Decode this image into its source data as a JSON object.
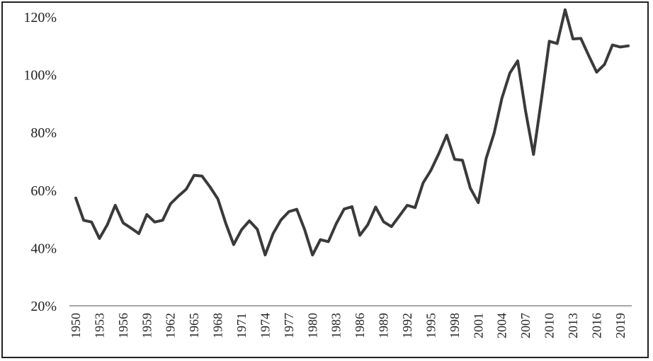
{
  "chart_data": {
    "type": "line",
    "title": "",
    "xlabel": "",
    "ylabel": "",
    "xlim": [
      1950,
      2020
    ],
    "ylim": [
      20,
      120
    ],
    "yticks": [
      "20%",
      "40%",
      "60%",
      "80%",
      "100%",
      "120%"
    ],
    "ytick_values": [
      20,
      40,
      60,
      80,
      100,
      120
    ],
    "xticks": [
      "1950",
      "1953",
      "1956",
      "1959",
      "1962",
      "1965",
      "1968",
      "1971",
      "1974",
      "1977",
      "1980",
      "1983",
      "1986",
      "1989",
      "1992",
      "1995",
      "1998",
      "2001",
      "2004",
      "2007",
      "2010",
      "2013",
      "2016",
      "2019"
    ],
    "xtick_values": [
      1950,
      1953,
      1956,
      1959,
      1962,
      1965,
      1968,
      1971,
      1974,
      1977,
      1980,
      1983,
      1986,
      1989,
      1992,
      1995,
      1998,
      2001,
      2004,
      2007,
      2010,
      2013,
      2016,
      2019
    ],
    "grid": false,
    "line_color": "#3a3a3a",
    "series": [
      {
        "x": [
          1950,
          1951,
          1952,
          1953,
          1954,
          1955,
          1956,
          1957,
          1958,
          1959,
          1960,
          1961,
          1962,
          1963,
          1964,
          1965,
          1966,
          1967,
          1968,
          1969,
          1970,
          1971,
          1972,
          1973,
          1974,
          1975,
          1976,
          1977,
          1978,
          1979,
          1980,
          1981,
          1982,
          1983,
          1984,
          1985,
          1986,
          1987,
          1988,
          1989,
          1990,
          1991,
          1992,
          1993,
          1994,
          1995,
          1996,
          1997,
          1998,
          1999,
          2000,
          2001,
          2002,
          2003,
          2004,
          2005,
          2006,
          2007,
          2008,
          2009,
          2010,
          2011,
          2012,
          2013,
          2014,
          2015,
          2016,
          2017,
          2018,
          2019,
          2020
        ],
        "values": [
          57.3,
          49.6,
          49.0,
          43.3,
          48.1,
          54.8,
          48.7,
          46.9,
          45.0,
          51.6,
          49.0,
          49.6,
          55.3,
          58.0,
          60.4,
          65.2,
          64.9,
          61.2,
          57.0,
          48.6,
          41.2,
          46.3,
          49.4,
          46.5,
          37.6,
          45.0,
          49.7,
          52.6,
          53.4,
          46.4,
          37.6,
          42.9,
          42.2,
          48.4,
          53.5,
          54.3,
          44.4,
          48.1,
          54.2,
          49.1,
          47.4,
          51.1,
          54.8,
          54.0,
          62.5,
          66.9,
          72.7,
          79.1,
          70.7,
          70.4,
          60.7,
          55.7,
          71.0,
          79.7,
          91.9,
          100.6,
          104.8,
          87.4,
          72.4,
          91.4,
          111.6,
          110.8,
          122.5,
          112.4,
          112.6,
          106.6,
          100.9,
          103.6,
          110.3,
          109.6,
          110.0
        ]
      }
    ]
  }
}
